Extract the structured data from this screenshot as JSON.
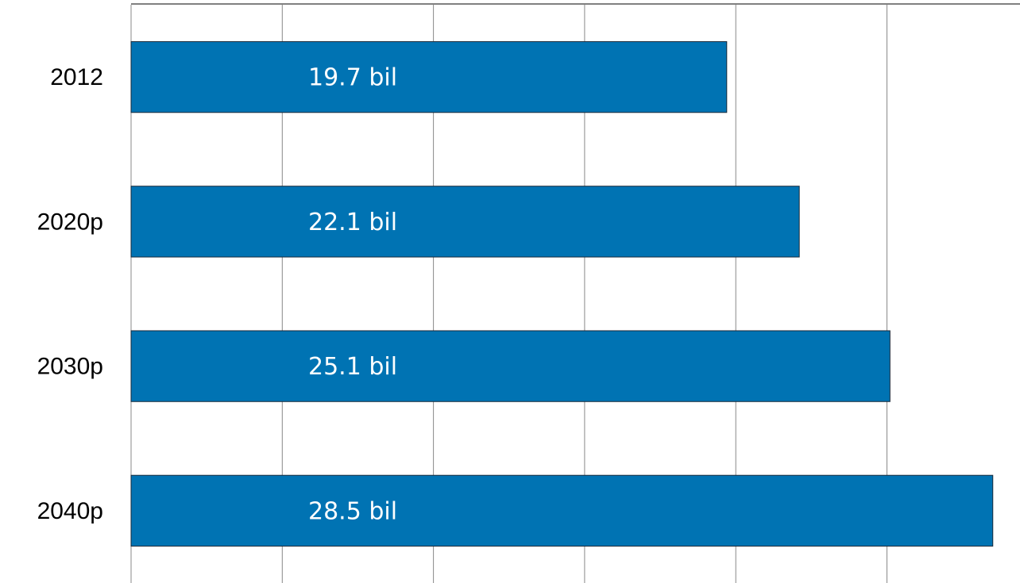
{
  "chart_data": {
    "type": "bar",
    "orientation": "horizontal",
    "categories": [
      "2012",
      "2020p",
      "2030p",
      "2040p"
    ],
    "values": [
      19.7,
      22.1,
      25.1,
      28.5
    ],
    "value_labels": [
      "19.7 bil",
      "22.1 bil",
      "25.1 bil",
      "28.5 bil"
    ],
    "color": "#0073b3",
    "xlim": [
      0,
      29.4
    ],
    "xticks": [
      0,
      5,
      10,
      15,
      20,
      25
    ],
    "grid": true
  }
}
